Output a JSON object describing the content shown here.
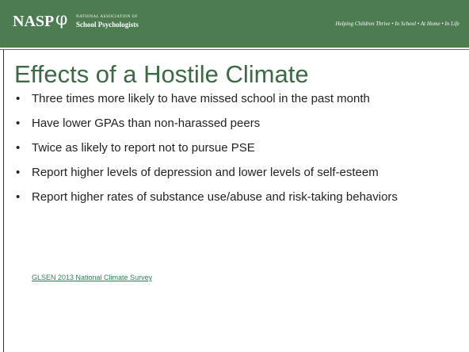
{
  "header": {
    "logo": "NASP",
    "logo_symbol": "φ",
    "logo_sub": [
      "NATIONAL ASSOCIATION OF",
      "School Psychologists"
    ],
    "tagline": "Helping Children Thrive • In School • At Home • In Life"
  },
  "title": "Effects of a Hostile Climate",
  "bullets": [
    "Three times more likely to have missed school in the past month",
    "Have lower GPAs than non-harassed peers",
    "Twice as likely to report not to pursue PSE",
    "Report higher levels of depression and lower levels of self-esteem",
    "Report higher rates of substance use/abuse and risk-taking behaviors"
  ],
  "source": "GLSEN 2013 National Climate Survey"
}
